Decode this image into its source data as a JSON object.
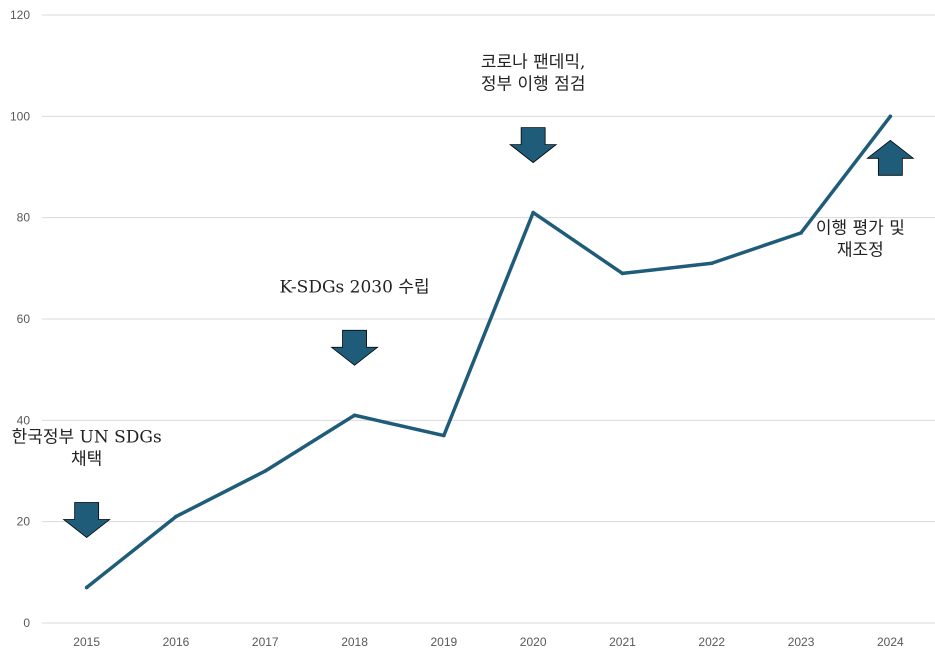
{
  "chart_data": {
    "type": "line",
    "title": "",
    "xlabel": "",
    "ylabel": "",
    "categories": [
      "2015",
      "2016",
      "2017",
      "2018",
      "2019",
      "2020",
      "2021",
      "2022",
      "2023",
      "2024"
    ],
    "series": [
      {
        "values": [
          7,
          21,
          30,
          41,
          37,
          81,
          69,
          71,
          77,
          100
        ]
      }
    ],
    "ylim": [
      0,
      120
    ],
    "yticks": [
      "0",
      "20",
      "40",
      "60",
      "80",
      "100",
      "120"
    ],
    "grid": true,
    "legend": "none",
    "colors": {
      "line": "#1f5c7a",
      "arrow": "#1f5c7a",
      "grid": "#d9d9d9"
    },
    "annotations": [
      {
        "category": "2015",
        "lines": [
          "한국정부 UN SDGs",
          "채택"
        ],
        "arrow": "down"
      },
      {
        "category": "2018",
        "lines": [
          "K-SDGs 2030 수립"
        ],
        "arrow": "down"
      },
      {
        "category": "2020",
        "lines": [
          "코로나 팬데믹,",
          "정부 이행 점검"
        ],
        "arrow": "down"
      },
      {
        "category": "2024",
        "lines": [
          "이행 평가 및",
          "재조정"
        ],
        "arrow": "up"
      }
    ]
  }
}
